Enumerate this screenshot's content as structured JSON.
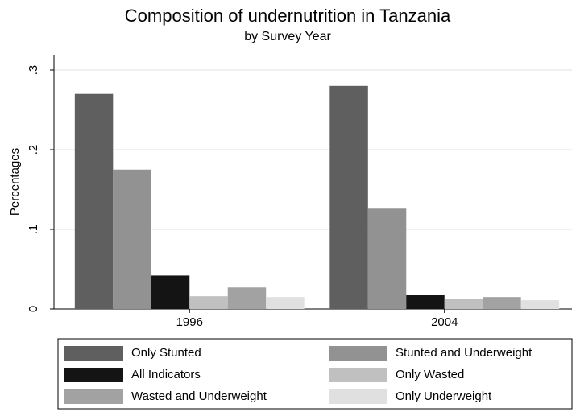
{
  "chart_data": {
    "type": "bar",
    "title": "Composition of undernutrition in Tanzania",
    "subtitle": "by Survey Year",
    "y_label": "Percentages",
    "categories": [
      "1996",
      "2004"
    ],
    "series": [
      {
        "name": "Only Stunted",
        "color": "#5f5f5f",
        "values": [
          0.27,
          0.28
        ]
      },
      {
        "name": "Stunted and Underweight",
        "color": "#929292",
        "values": [
          0.175,
          0.126
        ]
      },
      {
        "name": "All Indicators",
        "color": "#141414",
        "values": [
          0.042,
          0.018
        ]
      },
      {
        "name": "Only Wasted",
        "color": "#c0c0c0",
        "values": [
          0.016,
          0.013
        ]
      },
      {
        "name": "Wasted and Underweight",
        "color": "#a2a2a2",
        "values": [
          0.027,
          0.015
        ]
      },
      {
        "name": "Only Underweight",
        "color": "#e0e0e0",
        "values": [
          0.015,
          0.011
        ]
      }
    ],
    "ylim": [
      0,
      0.3
    ],
    "yticks": [
      0,
      {
        "value": 0.1,
        "label": ".1"
      },
      {
        "value": 0.2,
        "label": ".2"
      },
      {
        "value": 0.3,
        "label": ".3"
      }
    ],
    "grid": true
  }
}
